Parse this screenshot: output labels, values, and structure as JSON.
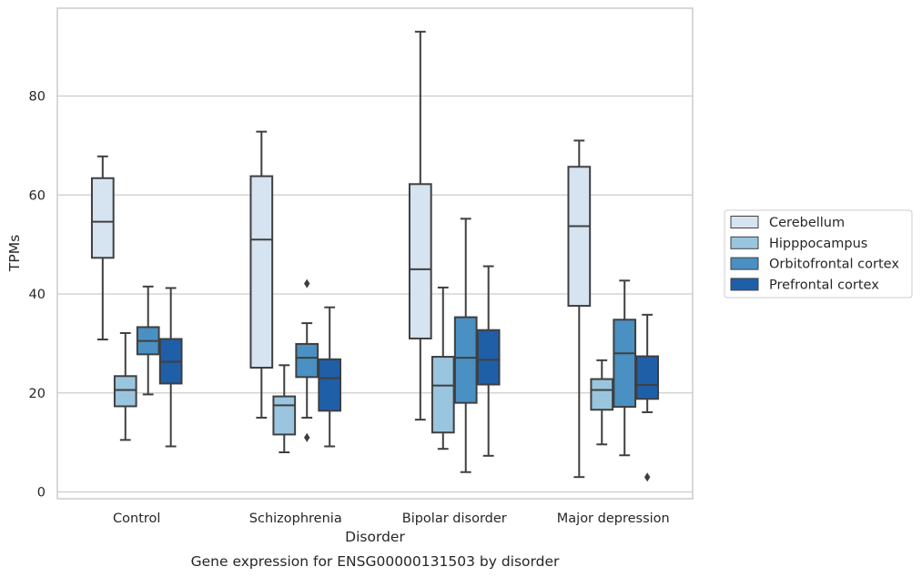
{
  "chart_data": {
    "type": "box",
    "title": "",
    "caption": "Gene expression for ENSG00000131503 by disorder",
    "xlabel": "Disorder",
    "ylabel": "TPMs",
    "ylim": [
      -1.5,
      96.5
    ],
    "yticks": [
      0,
      20,
      40,
      60,
      80
    ],
    "grid": "horizontal",
    "legend_position": "right",
    "categories": [
      "Control",
      "Schizophrenia",
      "Bipolar disorder",
      "Major depression"
    ],
    "series": [
      {
        "name": "Cerebellum",
        "color": "#d6e3f1",
        "boxes": [
          {
            "min": 30.8,
            "q1": 47.3,
            "median": 54.6,
            "q3": 63.4,
            "max": 67.8,
            "outliers": []
          },
          {
            "min": 15.0,
            "q1": 25.1,
            "median": 51.0,
            "q3": 63.8,
            "max": 72.8,
            "outliers": []
          },
          {
            "min": 14.6,
            "q1": 31.0,
            "median": 45.0,
            "q3": 62.2,
            "max": 93.0,
            "outliers": []
          },
          {
            "min": 3.0,
            "q1": 37.6,
            "median": 53.7,
            "q3": 65.7,
            "max": 71.0,
            "outliers": []
          }
        ]
      },
      {
        "name": "Hipppocampus",
        "color": "#9ac5de",
        "boxes": [
          {
            "min": 10.5,
            "q1": 17.3,
            "median": 20.6,
            "q3": 23.4,
            "max": 32.1,
            "outliers": []
          },
          {
            "min": 8.0,
            "q1": 11.6,
            "median": 17.5,
            "q3": 19.3,
            "max": 25.6,
            "outliers": []
          },
          {
            "min": 8.7,
            "q1": 12.0,
            "median": 21.5,
            "q3": 27.3,
            "max": 41.3,
            "outliers": []
          },
          {
            "min": 9.6,
            "q1": 16.6,
            "median": 20.6,
            "q3": 22.8,
            "max": 26.6,
            "outliers": []
          }
        ]
      },
      {
        "name": "Orbitofrontal cortex",
        "color": "#4a90c2",
        "boxes": [
          {
            "min": 19.7,
            "q1": 27.8,
            "median": 30.5,
            "q3": 33.3,
            "max": 41.5,
            "outliers": []
          },
          {
            "min": 15.0,
            "q1": 23.2,
            "median": 27.1,
            "q3": 29.9,
            "max": 34.1,
            "outliers": [
              11.0,
              42.1
            ]
          },
          {
            "min": 4.0,
            "q1": 18.0,
            "median": 27.1,
            "q3": 35.3,
            "max": 55.2,
            "outliers": []
          },
          {
            "min": 7.4,
            "q1": 17.2,
            "median": 28.0,
            "q3": 34.8,
            "max": 42.7,
            "outliers": []
          }
        ]
      },
      {
        "name": "Prefrontal cortex",
        "color": "#1f5fa8",
        "boxes": [
          {
            "min": 9.2,
            "q1": 21.9,
            "median": 26.3,
            "q3": 30.9,
            "max": 41.2,
            "outliers": []
          },
          {
            "min": 9.2,
            "q1": 16.4,
            "median": 23.0,
            "q3": 26.8,
            "max": 37.3,
            "outliers": []
          },
          {
            "min": 7.3,
            "q1": 21.7,
            "median": 26.7,
            "q3": 32.7,
            "max": 45.6,
            "outliers": []
          },
          {
            "min": 16.1,
            "q1": 18.8,
            "median": 21.6,
            "q3": 27.4,
            "max": 35.8,
            "outliers": [
              3.0
            ]
          }
        ]
      }
    ]
  }
}
